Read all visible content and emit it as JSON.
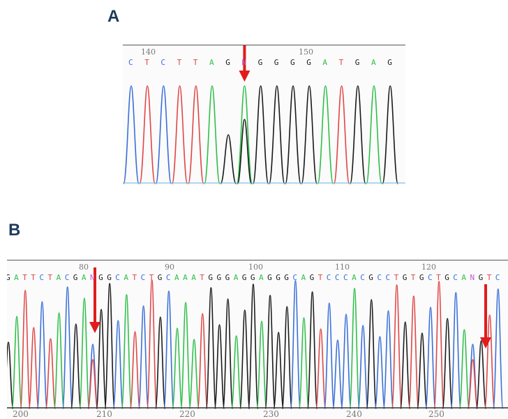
{
  "panels": {
    "a": {
      "label": "A"
    },
    "b": {
      "label": "B"
    }
  },
  "colors": {
    "A": "#2fbf4a",
    "C": "#3a6fd8",
    "G": "#1a1a1a",
    "T": "#e04646",
    "N": "#c35bc7",
    "arrow": "#e01c1c",
    "label": "#1f3a5c"
  },
  "panel_a": {
    "sequence": [
      "C",
      "T",
      "C",
      "T",
      "T",
      "A",
      "G",
      "N",
      "G",
      "G",
      "G",
      "G",
      "A",
      "T",
      "G",
      "A",
      "G"
    ],
    "ruler": [
      "140",
      "150"
    ],
    "arrow_base_index": 7
  },
  "panel_b": {
    "sequence": [
      "G",
      "A",
      "T",
      "T",
      "C",
      "T",
      "A",
      "C",
      "G",
      "A",
      "N",
      "G",
      "G",
      "C",
      "A",
      "T",
      "C",
      "T",
      "G",
      "C",
      "A",
      "A",
      "A",
      "T",
      "G",
      "G",
      "G",
      "A",
      "G",
      "G",
      "A",
      "G",
      "G",
      "G",
      "C",
      "A",
      "G",
      "T",
      "C",
      "C",
      "C",
      "A",
      "C",
      "G",
      "C",
      "C",
      "T",
      "G",
      "T",
      "G",
      "C",
      "T",
      "G",
      "C",
      "A",
      "N",
      "G",
      "T",
      "C"
    ],
    "top_ruler": [
      "80",
      "90",
      "100",
      "110",
      "120"
    ],
    "bottom_ruler": [
      "200",
      "210",
      "220",
      "230",
      "240",
      "250"
    ],
    "arrow_base_indices": [
      10,
      55
    ]
  }
}
